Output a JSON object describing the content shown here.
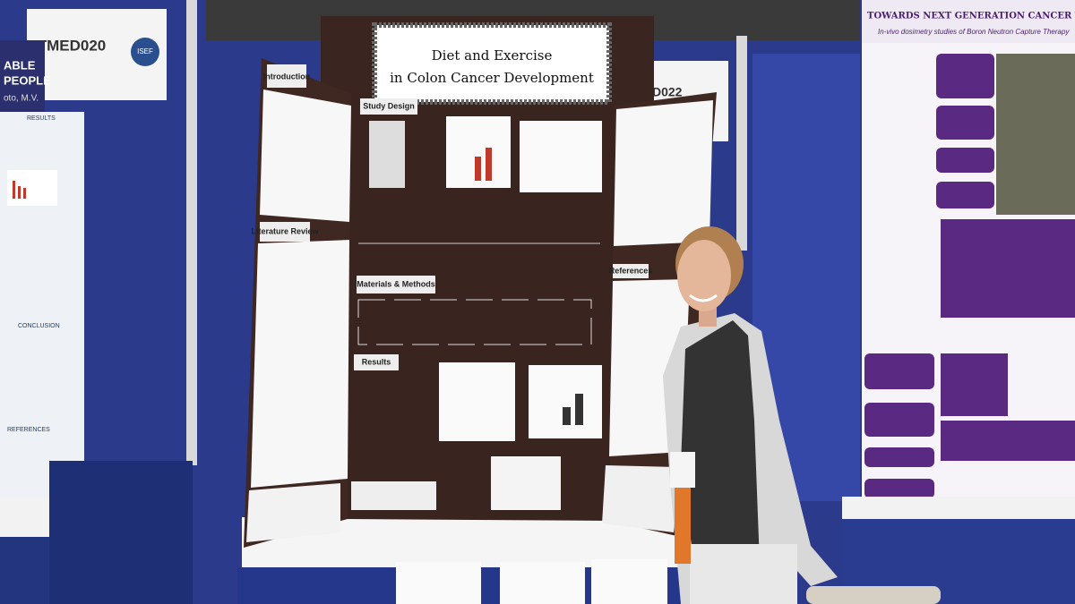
{
  "signs": {
    "left_booth": "TMED020",
    "logo": "ISEF",
    "middle_booth": "D022"
  },
  "left_poster": {
    "title_lines": [
      "ABLE",
      "PEOPLE"
    ],
    "author": "oto, M.V.",
    "sections": [
      "RESULTS",
      "CONCLUSION",
      "REFERENCES"
    ]
  },
  "board": {
    "title": [
      "Diet and Exercise",
      "in Colon Cancer Development"
    ],
    "headings": [
      "Introduction",
      "Study Design",
      "Literature Review",
      "Materials & Methods",
      "Results",
      "References"
    ]
  },
  "right_poster": {
    "title": "TOWARDS NEXT GENERATION CANCER TREATMENT",
    "subtitle": "In-vivo dosimetry studies of Boron Neutron Capture Therapy"
  }
}
